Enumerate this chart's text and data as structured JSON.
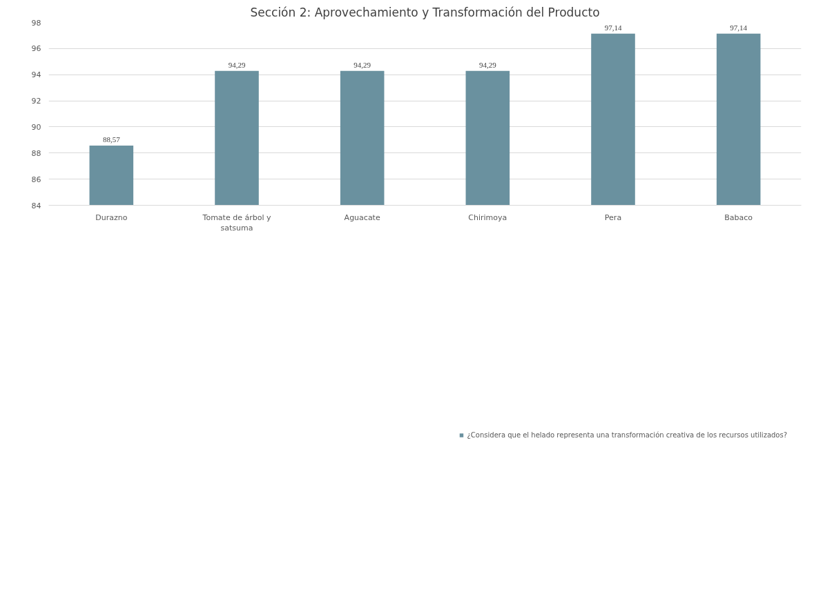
{
  "chart_data": {
    "type": "bar",
    "title": "Sección 2: Aprovechamiento y Transformación del Producto",
    "categories": [
      "Durazno",
      "Tomate de árbol y satsuma",
      "Aguacate",
      "Chirimoya",
      "Pera",
      "Babaco"
    ],
    "series": [
      {
        "name": "¿Considera que el helado representa una transformación creativa de los recursos utilizados?",
        "color": "#6a919f",
        "values": [
          88.57,
          94.29,
          94.29,
          94.29,
          97.14,
          97.14
        ],
        "value_labels": [
          "88,57",
          "94,29",
          "94,29",
          "94,29",
          "97,14",
          "97,14"
        ]
      }
    ],
    "ylim": [
      84,
      98
    ],
    "yticks": [
      84,
      86,
      88,
      90,
      92,
      94,
      96,
      98
    ],
    "grid": "y",
    "legend": "bottom"
  }
}
